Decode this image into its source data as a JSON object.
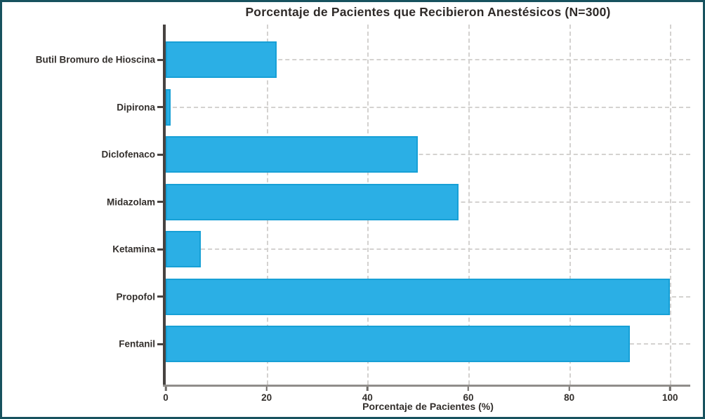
{
  "title": "Porcentaje de Pacientes que Recibieron Anestésicos (N=300)",
  "colors": {
    "bar_fill": "#2BAFE5",
    "bar_edge": "#17A0D6",
    "frame_border": "#17525E",
    "grid": "#D4D2D0",
    "y_spine": "#474341",
    "x_spine": "#908D8A",
    "text": "#332F2C"
  },
  "chart_data": {
    "type": "bar",
    "orientation": "horizontal",
    "title": "Porcentaje de Pacientes que Recibieron Anestésicos (N=300)",
    "xlabel": "Porcentaje de Pacientes (%)",
    "ylabel": "",
    "categories": [
      "Butil Bromuro de Hioscina",
      "Dipirona",
      "Diclofenaco",
      "Midazolam",
      "Ketamina",
      "Propofol",
      "Fentanil"
    ],
    "values": [
      22,
      1,
      50,
      58,
      7,
      100,
      92
    ],
    "xticks": [
      0,
      20,
      40,
      60,
      80,
      100
    ],
    "xlim": [
      0,
      104
    ],
    "grid": true,
    "legend": false
  }
}
